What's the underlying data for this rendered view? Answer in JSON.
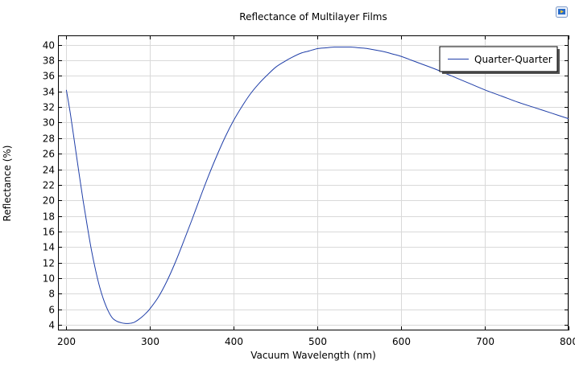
{
  "colors": {
    "series": "#1f3ea8",
    "grid": "#d9d9d9",
    "axis": "#000000",
    "icon_blue": "#2a6cc7",
    "icon_yellow": "#f4c430"
  },
  "toolbar": {
    "icon": "export-image-icon"
  },
  "chart_data": {
    "type": "line",
    "title": "Reflectance of Multilayer Films",
    "xlabel": "Vacuum Wavelength (nm)",
    "ylabel": "Reflectance (%)",
    "xlim": [
      190,
      800
    ],
    "ylim": [
      3.3,
      41.2
    ],
    "xticks": [
      "200",
      "300",
      "400",
      "500",
      "600",
      "700",
      "800"
    ],
    "yticks": [
      "4",
      "6",
      "8",
      "10",
      "12",
      "14",
      "16",
      "18",
      "20",
      "22",
      "24",
      "26",
      "28",
      "30",
      "32",
      "34",
      "36",
      "38",
      "40"
    ],
    "grid": true,
    "legend_position": "top-right",
    "series": [
      {
        "name": "Quarter-Quarter",
        "x": [
          200,
          205,
          210,
          215,
          220,
          225,
          230,
          235,
          240,
          245,
          250,
          255,
          260,
          265,
          270,
          275,
          280,
          285,
          290,
          295,
          300,
          310,
          320,
          330,
          340,
          350,
          360,
          370,
          380,
          390,
          400,
          410,
          420,
          430,
          440,
          450,
          460,
          470,
          480,
          490,
          500,
          510,
          520,
          530,
          540,
          550,
          560,
          570,
          580,
          590,
          600,
          620,
          640,
          660,
          680,
          700,
          720,
          740,
          760,
          780,
          800
        ],
        "y": [
          34.2,
          31.0,
          27.3,
          23.6,
          20.0,
          16.7,
          13.6,
          11.0,
          8.8,
          7.1,
          5.8,
          4.9,
          4.5,
          4.3,
          4.2,
          4.2,
          4.3,
          4.6,
          5.0,
          5.5,
          6.1,
          7.6,
          9.6,
          12.0,
          14.7,
          17.5,
          20.4,
          23.2,
          25.8,
          28.2,
          30.3,
          32.1,
          33.7,
          35.0,
          36.1,
          37.1,
          37.8,
          38.4,
          38.9,
          39.2,
          39.5,
          39.6,
          39.7,
          39.7,
          39.7,
          39.6,
          39.5,
          39.3,
          39.1,
          38.8,
          38.5,
          37.7,
          36.9,
          36.0,
          35.1,
          34.2,
          33.4,
          32.6,
          31.9,
          31.2,
          30.5
        ]
      }
    ]
  }
}
